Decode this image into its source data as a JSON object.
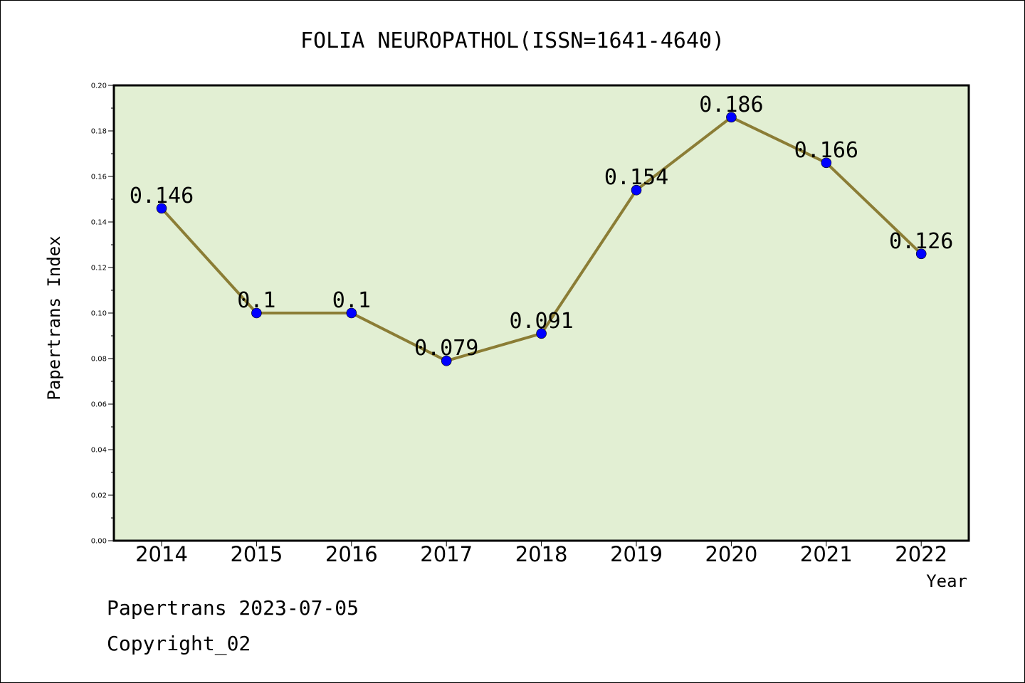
{
  "chart_data": {
    "type": "line",
    "title": "FOLIA NEUROPATHOL(ISSN=1641-4640)",
    "xlabel": "Year",
    "ylabel": "Papertrans Index",
    "categories": [
      "2014",
      "2015",
      "2016",
      "2017",
      "2018",
      "2019",
      "2020",
      "2021",
      "2022"
    ],
    "values": [
      0.146,
      0.1,
      0.1,
      0.079,
      0.091,
      0.154,
      0.186,
      0.166,
      0.126
    ],
    "data_labels": [
      "0.146",
      "0.1",
      "0.1",
      "0.079",
      "0.091",
      "0.154",
      "0.186",
      "0.166",
      "0.126"
    ],
    "ylim": [
      0,
      0.2
    ],
    "yticks": [
      "0.00",
      "0.02",
      "0.04",
      "0.06",
      "0.08",
      "0.10",
      "0.12",
      "0.14",
      "0.16",
      "0.18",
      "0.20"
    ],
    "grid": false,
    "legend": "none",
    "colors": {
      "plot_background": "#e2efd3",
      "line": "#8b7d35",
      "marker": "#0000ff"
    }
  },
  "footer": {
    "line1": "Papertrans 2023-07-05",
    "line2": "Copyright_02"
  }
}
